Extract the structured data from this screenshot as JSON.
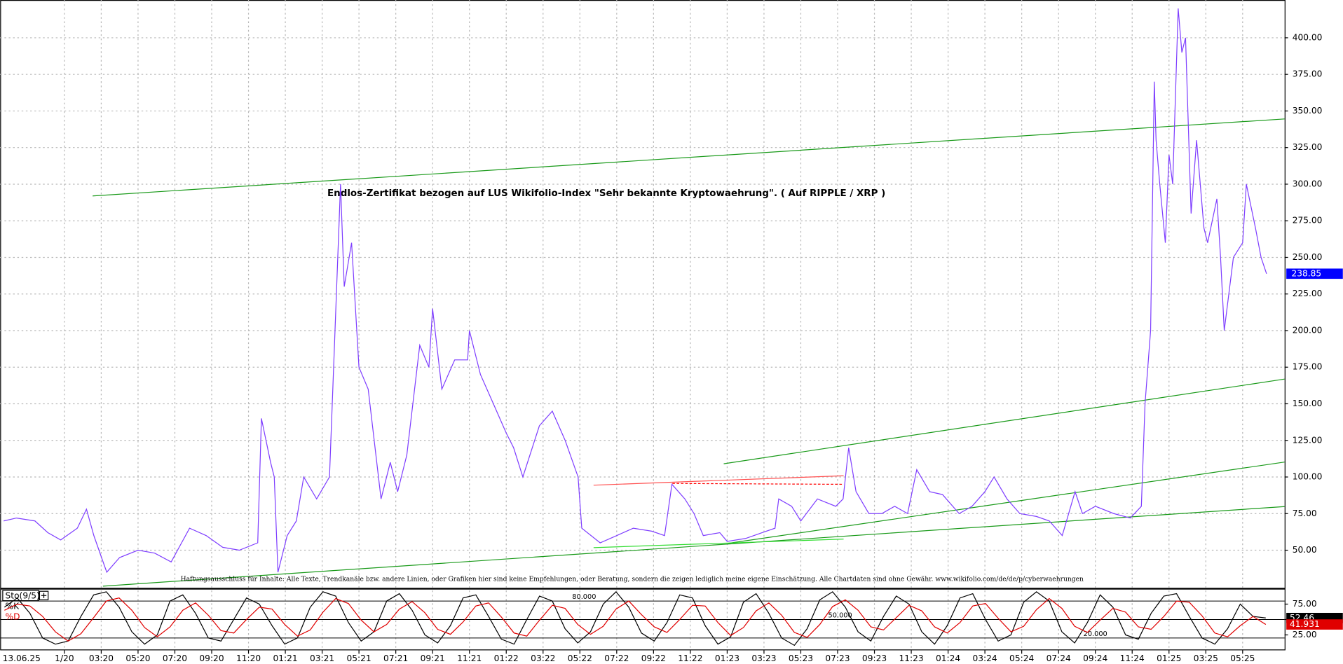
{
  "chart_data": [
    {
      "type": "line",
      "title": "Endlos-Zertifikat bezogen auf LUS Wikifolio-Index \"Sehr bekannte Kryptowaehrung\". ( Auf RIPPLE / XRP )",
      "annotation": "Haftungsausschluss für Inhalte: Alle Texte, Trendkanäle bzw. andere Linien, oder Grafiken hier sind keine Empfehlungen, oder Beratung, sondern die zeigen lediglich meine eigene Einschätzung. Alle Chartdaten sind ohne Gewähr. www.wikifolio.com/de/de/p/cyberwaehrungen",
      "date_label": "13.06.25",
      "x": [
        -3.3,
        -2.6,
        -1.6,
        -0.9,
        -0.2,
        0.7,
        1.2,
        1.6,
        2.1,
        2.3,
        3.0,
        4.0,
        4.9,
        5.8,
        6.8,
        7.7,
        8.6,
        9.5,
        10.5,
        10.7,
        11.2,
        11.4,
        11.6,
        12.1,
        12.6,
        13.0,
        13.7,
        14.4,
        15.0,
        15.2,
        15.6,
        16.0,
        16.5,
        17.2,
        17.7,
        18.1,
        18.6,
        19.3,
        19.8,
        20.0,
        20.5,
        21.2,
        21.9,
        22.0,
        22.6,
        23.3,
        24.0,
        24.4,
        24.9,
        25.8,
        26.5,
        27.2,
        27.9,
        28.1,
        29.1,
        30.0,
        30.9,
        31.9,
        32.6,
        33.0,
        33.7,
        34.2,
        34.7,
        35.6,
        36.0,
        37.0,
        37.9,
        38.6,
        38.8,
        39.5,
        40.0,
        40.9,
        41.9,
        42.3,
        42.6,
        43.0,
        43.7,
        44.4,
        45.1,
        45.8,
        46.3,
        47.0,
        47.7,
        48.6,
        49.3,
        50.0,
        50.5,
        51.2,
        51.9,
        52.8,
        53.5,
        54.2,
        54.9,
        55.3,
        56.0,
        57.0,
        57.9,
        58.5,
        58.7,
        59.0,
        59.2,
        59.3,
        59.5,
        59.8,
        60.0,
        60.2,
        60.5,
        60.7,
        60.9,
        61.2,
        61.5,
        61.9,
        62.1,
        62.6,
        62.8,
        63.0,
        63.5,
        64.0,
        64.2,
        64.7,
        65.0,
        65.3
      ],
      "values": [
        70,
        72,
        70,
        62,
        57,
        65,
        78,
        60,
        42,
        35,
        45,
        50,
        48,
        42,
        65,
        60,
        52,
        50,
        55,
        140,
        110,
        100,
        35,
        60,
        70,
        100,
        85,
        100,
        300,
        230,
        260,
        175,
        160,
        85,
        110,
        90,
        115,
        190,
        175,
        215,
        160,
        180,
        180,
        200,
        170,
        150,
        130,
        120,
        100,
        135,
        145,
        125,
        100,
        65,
        55,
        60,
        65,
        63,
        60,
        95,
        85,
        75,
        60,
        62,
        56,
        58,
        62,
        65,
        85,
        80,
        70,
        85,
        80,
        85,
        120,
        90,
        75,
        75,
        80,
        75,
        105,
        90,
        88,
        75,
        80,
        90,
        100,
        85,
        75,
        73,
        70,
        60,
        90,
        75,
        80,
        75,
        72,
        80,
        150,
        200,
        370,
        330,
        300,
        260,
        320,
        300,
        420,
        390,
        400,
        280,
        330,
        270,
        260,
        290,
        250,
        200,
        250,
        260,
        300,
        270,
        250,
        238.85
      ],
      "color": "#7f3fff",
      "xlim": [
        -3.49,
        66.28
      ],
      "xticks": [
        {
          "value": 0,
          "label": "1/20"
        },
        {
          "value": 2,
          "label": "03:20"
        },
        {
          "value": 4,
          "label": "05:20"
        },
        {
          "value": 6,
          "label": "07:20"
        },
        {
          "value": 8,
          "label": "09:20"
        },
        {
          "value": 10,
          "label": "11:20"
        },
        {
          "value": 12,
          "label": "01:21"
        },
        {
          "value": 14,
          "label": "03:21"
        },
        {
          "value": 16,
          "label": "05:21"
        },
        {
          "value": 18,
          "label": "07:21"
        },
        {
          "value": 20,
          "label": "09:21"
        },
        {
          "value": 22,
          "label": "11:21"
        },
        {
          "value": 24,
          "label": "01:22"
        },
        {
          "value": 26,
          "label": "03:22"
        },
        {
          "value": 28,
          "label": "05:22"
        },
        {
          "value": 30,
          "label": "07:22"
        },
        {
          "value": 32,
          "label": "09:22"
        },
        {
          "value": 34,
          "label": "11:22"
        },
        {
          "value": 36,
          "label": "01:23"
        },
        {
          "value": 38,
          "label": "03:23"
        },
        {
          "value": 40,
          "label": "05:23"
        },
        {
          "value": 42,
          "label": "07:23"
        },
        {
          "value": 44,
          "label": "09:23"
        },
        {
          "value": 46,
          "label": "11:23"
        },
        {
          "value": 48,
          "label": "01:24"
        },
        {
          "value": 50,
          "label": "03:24"
        },
        {
          "value": 52,
          "label": "05:24"
        },
        {
          "value": 54,
          "label": "07:24"
        },
        {
          "value": 56,
          "label": "09:24"
        },
        {
          "value": 58,
          "label": "11:24"
        },
        {
          "value": 60,
          "label": "01:25"
        },
        {
          "value": 62,
          "label": "03:25"
        },
        {
          "value": 64,
          "label": "05:25"
        }
      ],
      "ylim": [
        23.7,
        425.8
      ],
      "yticks": [
        {
          "value": 50,
          "label": "50.00"
        },
        {
          "value": 75,
          "label": "75.00"
        },
        {
          "value": 100,
          "label": "100.00"
        },
        {
          "value": 125,
          "label": "125.00"
        },
        {
          "value": 150,
          "label": "150.00"
        },
        {
          "value": 175,
          "label": "175.00"
        },
        {
          "value": 200,
          "label": "200.00"
        },
        {
          "value": 225,
          "label": "225.00"
        },
        {
          "value": 250,
          "label": "250.00"
        },
        {
          "value": 275,
          "label": "275.00"
        },
        {
          "value": 300,
          "label": "300.00"
        },
        {
          "value": 325,
          "label": "325.00"
        },
        {
          "value": 350,
          "label": "350.00"
        },
        {
          "value": 375,
          "label": "375.00"
        },
        {
          "value": 400,
          "label": "400.00"
        }
      ],
      "grid": true
    },
    {
      "type": "line",
      "title": "Sto(9/5)",
      "series": [
        {
          "name": "%K",
          "color": "#000000",
          "values": [
            70,
            85,
            60,
            20,
            10,
            15,
            55,
            90,
            95,
            70,
            30,
            10,
            25,
            80,
            90,
            60,
            20,
            15,
            50,
            85,
            75,
            40,
            10,
            20,
            70,
            95,
            88,
            45,
            15,
            30,
            80,
            92,
            65,
            25,
            12,
            40,
            85,
            90,
            55,
            18,
            10,
            50,
            88,
            80,
            35,
            12,
            30,
            75,
            95,
            70,
            28,
            15,
            45,
            90,
            85,
            40,
            10,
            22,
            78,
            92,
            60,
            20,
            8,
            35,
            82,
            95,
            70,
            30,
            15,
            55,
            88,
            75,
            30,
            10,
            40,
            85,
            92,
            50,
            15,
            25,
            78,
            95,
            80,
            30,
            12,
            45,
            90,
            70,
            25,
            18,
            60,
            88,
            92,
            55,
            20,
            10,
            35,
            75,
            55,
            52.46
          ]
        },
        {
          "name": "%D",
          "color": "#e00000",
          "values": [
            65,
            75,
            72,
            55,
            30,
            15,
            27,
            53,
            80,
            85,
            65,
            37,
            22,
            38,
            65,
            77,
            57,
            32,
            28,
            50,
            70,
            67,
            42,
            23,
            33,
            62,
            84,
            76,
            49,
            30,
            42,
            67,
            79,
            61,
            34,
            26,
            46,
            72,
            77,
            54,
            28,
            23,
            49,
            73,
            68,
            42,
            26,
            39,
            67,
            80,
            58,
            38,
            29,
            50,
            73,
            72,
            45,
            24,
            37,
            64,
            77,
            57,
            29,
            21,
            42,
            71,
            82,
            65,
            38,
            33,
            53,
            73,
            64,
            38,
            28,
            45,
            72,
            76,
            52,
            30,
            39,
            66,
            84,
            68,
            39,
            29,
            49,
            68,
            62,
            38,
            34,
            55,
            80,
            78,
            56,
            28,
            22,
            40,
            55,
            41.931
          ]
        }
      ],
      "ylim": [
        0,
        100
      ],
      "yticks": [
        {
          "value": 25,
          "label": "25.00"
        },
        {
          "value": 50,
          "label": "50.00"
        },
        {
          "value": 75,
          "label": "75.00"
        }
      ],
      "levels": [
        {
          "value": 80,
          "label": "80.000"
        },
        {
          "value": 50,
          "label": "50.000"
        },
        {
          "value": 20,
          "label": "20.000"
        }
      ]
    }
  ]
}
